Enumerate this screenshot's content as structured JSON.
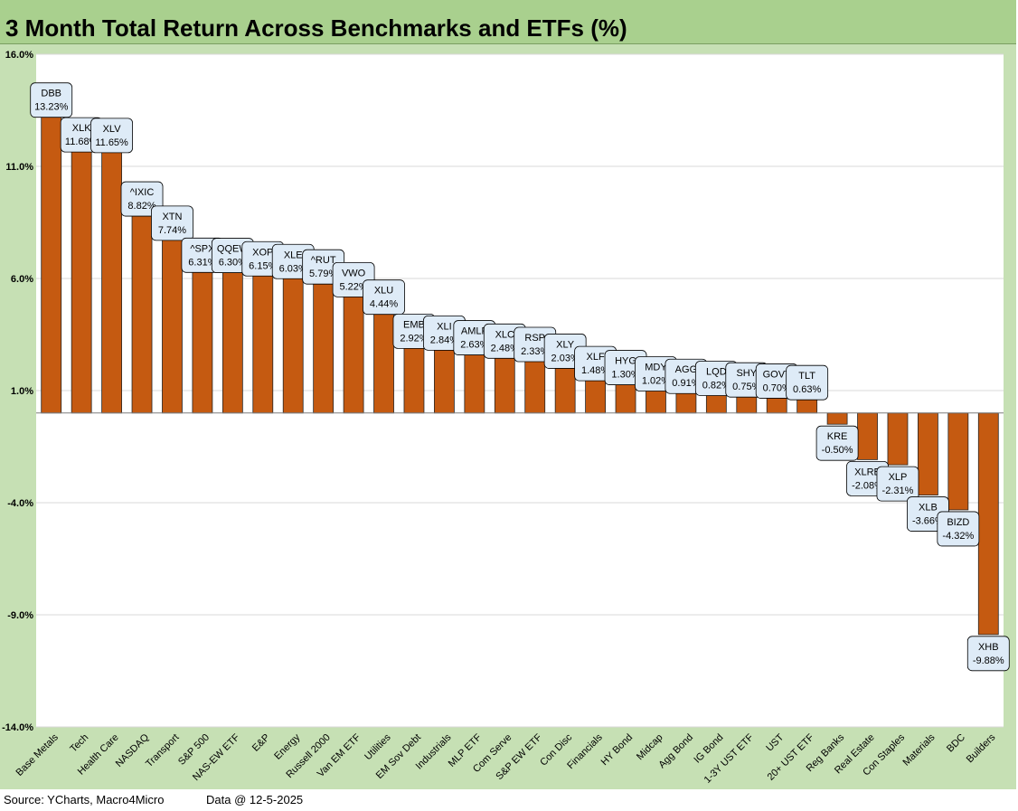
{
  "title": "3 Month Total Return Across Benchmarks and ETFs (%)",
  "footer": {
    "source": "Source: YCharts, Macro4Micro",
    "data_date": "Data @ 12-5-2025"
  },
  "colors": {
    "bar": "#c55a11",
    "plot_bg": "#ffffff",
    "outer_bg": "#c6e0b4",
    "title_bg": "#a9d08e",
    "label_box": "#deebf7"
  },
  "chart_data": {
    "type": "bar",
    "title": "3 Month Total Return Across Benchmarks and ETFs (%)",
    "xlabel": "",
    "ylabel": "",
    "ylim": [
      -14,
      16
    ],
    "yticks": [
      16,
      11,
      6,
      1,
      -4,
      -9,
      -14
    ],
    "ytick_labels": [
      "16.0%",
      "11.0%",
      "6.0%",
      "1.0%",
      "-4.0%",
      "-9.0%",
      "-14.0%"
    ],
    "grid": true,
    "categories": [
      "Base Metals",
      "Tech",
      "Health Care",
      "NASDAQ",
      "Transport",
      "S&P 500",
      "NAS-EW ETF",
      "E&P",
      "Energy",
      "Russell 2000",
      "Van EM ETF",
      "Utilities",
      "EM Sov Debt",
      "Industrials",
      "MLP ETF",
      "Com Serve",
      "S&P EW ETF",
      "Con Disc",
      "Financials",
      "HY Bond",
      "Midcap",
      "Agg Bond",
      "IG Bond",
      "1-3Y UST ETF",
      "UST",
      "20+ UST ETF",
      "Reg Banks",
      "Real Estate",
      "Con Staples",
      "Materials",
      "BDC",
      "Builders"
    ],
    "tickers": [
      "DBB",
      "XLK",
      "XLV",
      "^IXIC",
      "XTN",
      "^SPX",
      "QQEW",
      "XOP",
      "XLE",
      "^RUT",
      "VWO",
      "XLU",
      "EMB",
      "XLI",
      "AMLP",
      "XLC",
      "RSP",
      "XLY",
      "XLF",
      "HYG",
      "MDY",
      "AGG",
      "LQD",
      "SHY",
      "GOVT",
      "TLT",
      "KRE",
      "XLRE",
      "XLP",
      "XLB",
      "BIZD",
      "XHB"
    ],
    "values": [
      13.23,
      11.68,
      11.65,
      8.82,
      7.74,
      6.31,
      6.3,
      6.15,
      6.03,
      5.79,
      5.22,
      4.44,
      2.92,
      2.84,
      2.63,
      2.48,
      2.33,
      2.03,
      1.48,
      1.3,
      1.02,
      0.91,
      0.82,
      0.75,
      0.7,
      0.63,
      -0.5,
      -2.08,
      -2.31,
      -3.66,
      -4.32,
      -9.88
    ],
    "value_labels": [
      "13.23%",
      "11.68%",
      "11.65%",
      "8.82%",
      "7.74%",
      "6.31%",
      "6.30%",
      "6.15%",
      "6.03%",
      "5.79%",
      "5.22%",
      "4.44%",
      "2.92%",
      "2.84%",
      "2.63%",
      "2.48%",
      "2.33%",
      "2.03%",
      "1.48%",
      "1.30%",
      "1.02%",
      "0.91%",
      "0.82%",
      "0.75%",
      "0.70%",
      "0.63%",
      "-0.50%",
      "-2.08%",
      "-2.31%",
      "-3.66%",
      "-4.32%",
      "-9.88%"
    ]
  }
}
